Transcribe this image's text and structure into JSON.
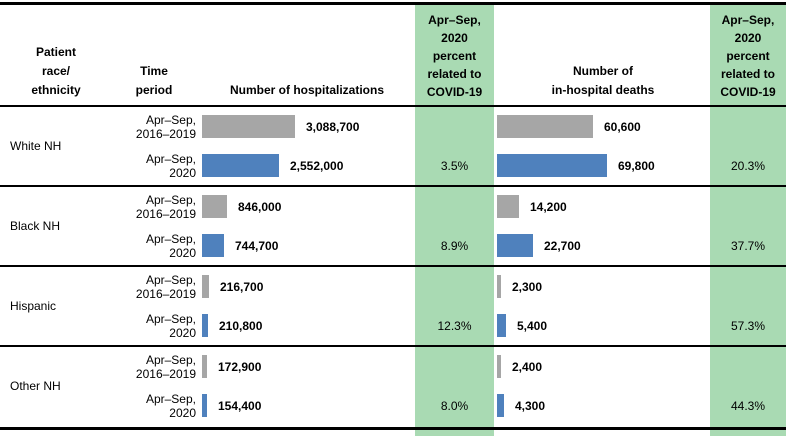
{
  "header": {
    "race": "Patient\nrace/\nethnicity",
    "time": "Time\nperiod",
    "hospitalizations": "Number of hospitalizations",
    "covid_pct_hosp": "Apr–Sep,\n2020\npercent\nrelated to\nCOVID-19",
    "deaths": "Number of\nin-hospital deaths",
    "covid_pct_deaths": "Apr–Sep,\n2020\npercent\nrelated to\nCOVID-19"
  },
  "colors": {
    "baseline_bar": "#a6a6a6",
    "covid_bar": "#4f81bd",
    "highlight_column": "#a9dab3",
    "rule": "#000000"
  },
  "chart_data": {
    "type": "bar",
    "orientation": "horizontal",
    "value_labels_shown": true,
    "measures": [
      "Number of hospitalizations",
      "Number of in-hospital deaths"
    ],
    "series": [
      {
        "key": "baseline",
        "name": "Apr–Sep, 2016–2019",
        "color": "#a6a6a6"
      },
      {
        "key": "covid",
        "name": "Apr–Sep, 2020",
        "color": "#4f81bd"
      }
    ],
    "groups": [
      {
        "race": "White NH",
        "rows": [
          {
            "period": "Apr–Sep,\n2016–2019",
            "series": "baseline",
            "hosp": 3088700,
            "hosp_label": "3,088,700",
            "deaths": 60600,
            "deaths_label": "60,600"
          },
          {
            "period": "Apr–Sep,\n2020",
            "series": "covid",
            "hosp": 2552000,
            "hosp_label": "2,552,000",
            "deaths": 69800,
            "deaths_label": "69,800",
            "hosp_pct": "3.5%",
            "deaths_pct": "20.3%"
          }
        ]
      },
      {
        "race": "Black NH",
        "rows": [
          {
            "period": "Apr–Sep,\n2016–2019",
            "series": "baseline",
            "hosp": 846000,
            "hosp_label": "846,000",
            "deaths": 14200,
            "deaths_label": "14,200"
          },
          {
            "period": "Apr–Sep,\n2020",
            "series": "covid",
            "hosp": 744700,
            "hosp_label": "744,700",
            "deaths": 22700,
            "deaths_label": "22,700",
            "hosp_pct": "8.9%",
            "deaths_pct": "37.7%"
          }
        ]
      },
      {
        "race": "Hispanic",
        "rows": [
          {
            "period": "Apr–Sep,\n2016–2019",
            "series": "baseline",
            "hosp": 216700,
            "hosp_label": "216,700",
            "deaths": 2300,
            "deaths_label": "2,300"
          },
          {
            "period": "Apr–Sep,\n2020",
            "series": "covid",
            "hosp": 210800,
            "hosp_label": "210,800",
            "deaths": 5400,
            "deaths_label": "5,400",
            "hosp_pct": "12.3%",
            "deaths_pct": "57.3%"
          }
        ]
      },
      {
        "race": "Other NH",
        "rows": [
          {
            "period": "Apr–Sep,\n2016–2019",
            "series": "baseline",
            "hosp": 172900,
            "hosp_label": "172,900",
            "deaths": 2400,
            "deaths_label": "2,400"
          },
          {
            "period": "Apr–Sep,\n2020",
            "series": "covid",
            "hosp": 154400,
            "hosp_label": "154,400",
            "deaths": 4300,
            "deaths_label": "4,300",
            "hosp_pct": "8.0%",
            "deaths_pct": "44.3%"
          }
        ]
      }
    ]
  }
}
